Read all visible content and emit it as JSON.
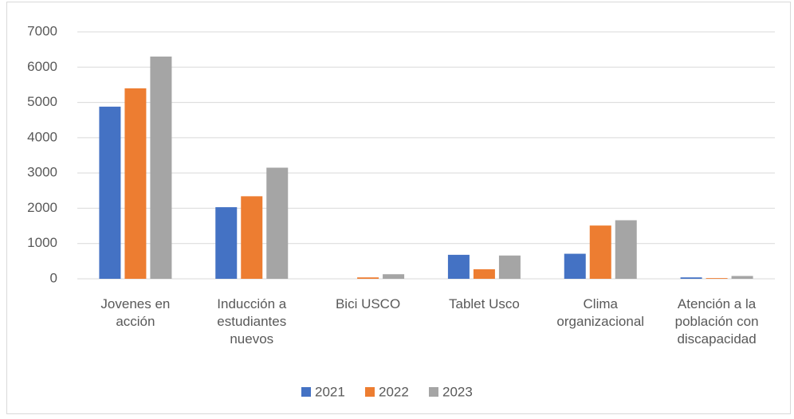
{
  "chart_data": {
    "type": "bar",
    "categories": [
      "Jovenes en acción",
      "Inducción a estudiantes nuevos",
      "Bici USCO",
      "Tablet Usco",
      "Clima organizacional",
      "Atención a la población con discapacidad"
    ],
    "series": [
      {
        "name": "2021",
        "color": "#4472c4",
        "values": [
          4880,
          2030,
          0,
          680,
          710,
          40
        ]
      },
      {
        "name": "2022",
        "color": "#ed7d31",
        "values": [
          5400,
          2340,
          40,
          270,
          1510,
          20
        ]
      },
      {
        "name": "2023",
        "color": "#a5a5a5",
        "values": [
          6300,
          3150,
          130,
          660,
          1660,
          80
        ]
      }
    ],
    "ylim": [
      0,
      7000
    ],
    "yticks": [
      0,
      1000,
      2000,
      3000,
      4000,
      5000,
      6000,
      7000
    ],
    "grid": true,
    "legend": "bottom"
  }
}
